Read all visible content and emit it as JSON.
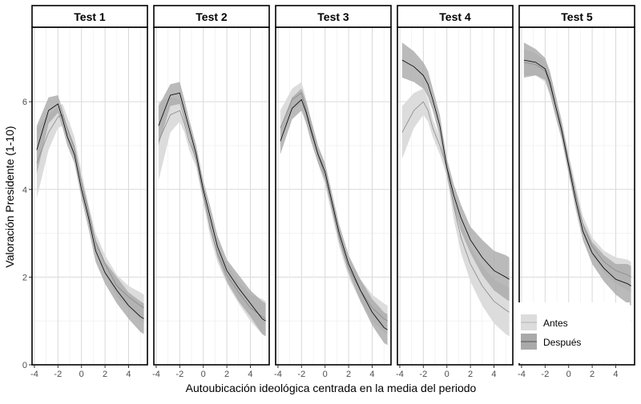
{
  "colors": {
    "band_antes": "#dcdcdc",
    "band_despues": "#a9a9a9",
    "line_antes": "#8a8a8a",
    "line_despues": "#000000",
    "grid": "#d9d9d9",
    "strip_bg": "#ffffff",
    "axis_text": "#4d4d4d"
  },
  "chart_data": {
    "type": "line",
    "xlabel": "Autoubicación ideológica centrada en la media del periodo",
    "ylabel": "Valoración Presidente (1-10)",
    "xlim": [
      -4.2,
      5.6
    ],
    "ylim": [
      0,
      7.7
    ],
    "x_ticks": [
      "-4",
      "-2",
      "0",
      "2",
      "4"
    ],
    "x_tick_values": [
      -4,
      -2,
      0,
      2,
      4
    ],
    "y_ticks": [
      "0",
      "2",
      "4",
      "6"
    ],
    "y_tick_values": [
      0,
      2,
      4,
      6
    ],
    "grid": true,
    "legend": {
      "placement": "bottom-right",
      "entries": [
        {
          "label": "Antes",
          "key": "antes"
        },
        {
          "label": "Después",
          "key": "despues"
        }
      ]
    },
    "x": [
      -3.8,
      -2.8,
      -2.0,
      -1.6,
      -1.2,
      -0.6,
      0.0,
      0.6,
      1.2,
      2.0,
      3.0,
      4.0,
      5.0,
      5.3
    ],
    "facets": [
      {
        "title": "Test 1",
        "antes": {
          "values": [
            4.6,
            5.3,
            5.65,
            5.7,
            5.4,
            4.95,
            4.2,
            3.45,
            2.8,
            2.3,
            1.8,
            1.55,
            1.35,
            1.3
          ],
          "lower": [
            3.8,
            4.9,
            5.4,
            5.45,
            5.15,
            4.7,
            4.0,
            3.25,
            2.6,
            2.1,
            1.55,
            1.3,
            1.05,
            0.95
          ],
          "upper": [
            5.4,
            5.7,
            5.9,
            5.95,
            5.65,
            5.2,
            4.4,
            3.65,
            3.0,
            2.5,
            2.05,
            1.8,
            1.65,
            1.6
          ]
        },
        "despues": {
          "values": [
            4.9,
            5.8,
            5.95,
            5.6,
            5.2,
            4.8,
            4.0,
            3.35,
            2.6,
            2.1,
            1.7,
            1.35,
            1.1,
            1.05
          ],
          "lower": [
            4.35,
            5.5,
            5.75,
            5.4,
            5.0,
            4.6,
            3.8,
            3.1,
            2.35,
            1.85,
            1.4,
            1.05,
            0.75,
            0.7
          ],
          "upper": [
            5.45,
            6.1,
            6.15,
            5.8,
            5.4,
            5.0,
            4.2,
            3.6,
            2.85,
            2.35,
            2.0,
            1.65,
            1.45,
            1.4
          ]
        }
      },
      {
        "title": "Test 2",
        "antes": {
          "values": [
            5.1,
            5.7,
            5.8,
            5.5,
            5.1,
            4.7,
            3.9,
            3.1,
            2.55,
            2.05,
            1.65,
            1.3,
            1.1,
            1.05
          ],
          "lower": [
            4.2,
            5.3,
            5.55,
            5.3,
            4.9,
            4.5,
            3.7,
            2.9,
            2.35,
            1.85,
            1.4,
            1.0,
            0.7,
            0.65
          ],
          "upper": [
            6.0,
            6.1,
            6.05,
            5.75,
            5.35,
            4.9,
            4.1,
            3.3,
            2.75,
            2.3,
            1.9,
            1.6,
            1.5,
            1.45
          ]
        },
        "despues": {
          "values": [
            5.45,
            6.15,
            6.2,
            5.8,
            5.4,
            4.8,
            4.0,
            3.35,
            2.7,
            2.15,
            1.75,
            1.4,
            1.05,
            1.0
          ],
          "lower": [
            5.0,
            5.9,
            5.95,
            5.55,
            5.2,
            4.6,
            3.8,
            3.1,
            2.45,
            1.9,
            1.45,
            1.1,
            0.7,
            0.65
          ],
          "upper": [
            5.9,
            6.4,
            6.45,
            6.05,
            5.6,
            5.0,
            4.2,
            3.6,
            2.95,
            2.4,
            2.05,
            1.7,
            1.45,
            1.4
          ]
        }
      },
      {
        "title": "Test 3",
        "antes": {
          "values": [
            5.4,
            6.05,
            6.2,
            5.8,
            5.4,
            4.8,
            4.3,
            3.6,
            2.9,
            2.2,
            1.7,
            1.3,
            1.05,
            1.0
          ],
          "lower": [
            5.0,
            5.8,
            5.95,
            5.55,
            5.2,
            4.6,
            4.1,
            3.4,
            2.7,
            2.0,
            1.45,
            1.0,
            0.75,
            0.7
          ],
          "upper": [
            5.8,
            6.3,
            6.45,
            6.05,
            5.6,
            5.0,
            4.5,
            3.8,
            3.1,
            2.4,
            1.95,
            1.6,
            1.4,
            1.35
          ]
        },
        "despues": {
          "values": [
            5.1,
            5.85,
            6.05,
            5.75,
            5.35,
            4.8,
            4.4,
            3.7,
            3.0,
            2.3,
            1.7,
            1.2,
            0.85,
            0.8
          ],
          "lower": [
            4.8,
            5.6,
            5.8,
            5.5,
            5.1,
            4.6,
            4.2,
            3.5,
            2.8,
            2.1,
            1.45,
            0.9,
            0.5,
            0.45
          ],
          "upper": [
            5.4,
            6.1,
            6.3,
            6.0,
            5.6,
            5.0,
            4.6,
            3.9,
            3.2,
            2.5,
            1.95,
            1.5,
            1.2,
            1.15
          ]
        }
      },
      {
        "title": "Test 4",
        "antes": {
          "values": [
            5.3,
            5.8,
            6.0,
            5.8,
            5.4,
            5.0,
            4.5,
            3.6,
            2.9,
            2.3,
            1.8,
            1.45,
            1.25,
            1.2
          ],
          "lower": [
            4.7,
            5.4,
            5.7,
            5.55,
            5.2,
            4.8,
            4.3,
            3.3,
            2.55,
            1.9,
            1.35,
            0.95,
            0.7,
            0.65
          ],
          "upper": [
            5.9,
            6.2,
            6.3,
            6.05,
            5.6,
            5.2,
            4.7,
            3.9,
            3.25,
            2.7,
            2.25,
            1.95,
            1.8,
            1.75
          ]
        },
        "despues": {
          "values": [
            6.95,
            6.8,
            6.6,
            6.4,
            6.05,
            5.45,
            4.5,
            3.85,
            3.35,
            2.85,
            2.45,
            2.15,
            2.0,
            1.95
          ],
          "lower": [
            6.55,
            6.45,
            6.3,
            6.1,
            5.8,
            5.2,
            4.3,
            3.6,
            3.05,
            2.55,
            2.05,
            1.7,
            1.5,
            1.45
          ],
          "upper": [
            7.35,
            7.15,
            6.9,
            6.7,
            6.3,
            5.7,
            4.7,
            4.1,
            3.65,
            3.15,
            2.85,
            2.6,
            2.5,
            2.45
          ]
        }
      },
      {
        "title": "Test 5",
        "antes": {
          "values": [
            6.9,
            6.85,
            6.7,
            6.4,
            6.0,
            5.4,
            4.6,
            3.9,
            3.2,
            2.7,
            2.35,
            2.15,
            2.05,
            2.0
          ],
          "lower": [
            6.6,
            6.6,
            6.45,
            6.15,
            5.8,
            5.2,
            4.4,
            3.7,
            3.0,
            2.5,
            2.1,
            1.85,
            1.7,
            1.65
          ],
          "upper": [
            7.2,
            7.1,
            6.95,
            6.65,
            6.2,
            5.6,
            4.8,
            4.1,
            3.4,
            2.9,
            2.6,
            2.45,
            2.4,
            2.35
          ]
        },
        "despues": {
          "values": [
            6.95,
            6.9,
            6.75,
            6.45,
            6.0,
            5.35,
            4.55,
            3.75,
            3.05,
            2.55,
            2.2,
            1.95,
            1.85,
            1.8
          ],
          "lower": [
            6.55,
            6.6,
            6.5,
            6.2,
            5.75,
            5.15,
            4.35,
            3.55,
            2.85,
            2.3,
            1.9,
            1.6,
            1.4,
            1.35
          ],
          "upper": [
            7.35,
            7.2,
            7.0,
            6.7,
            6.25,
            5.55,
            4.75,
            3.95,
            3.25,
            2.8,
            2.5,
            2.3,
            2.3,
            2.25
          ]
        }
      }
    ]
  }
}
